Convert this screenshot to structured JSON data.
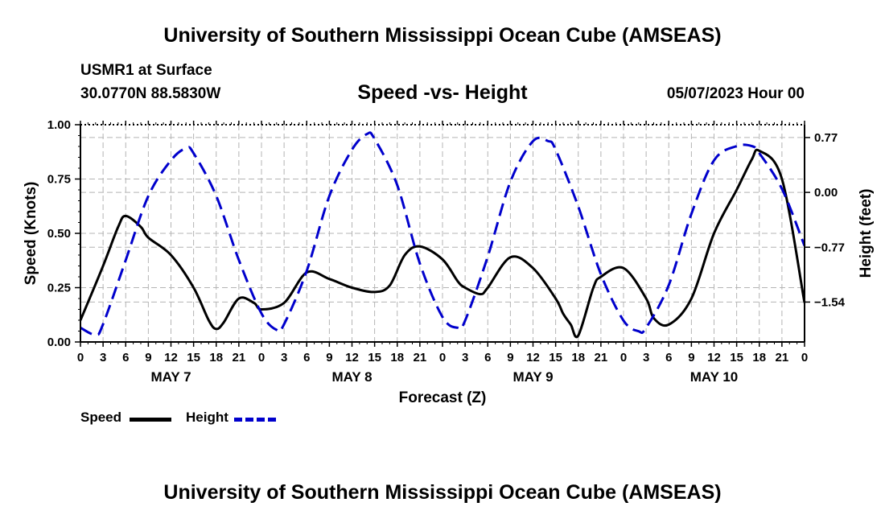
{
  "header": {
    "title": "University of Southern Mississippi Ocean Cube (AMSEAS)",
    "station": "USMR1 at Surface",
    "coords": "30.0770N  88.5830W",
    "chart_title": "Speed -vs- Height",
    "datetime": "05/07/2023 Hour 00"
  },
  "footer": {
    "title": "University of Southern Mississippi Ocean Cube (AMSEAS)"
  },
  "legend": {
    "speed_label": "Speed",
    "height_label": "Height"
  },
  "colors": {
    "speed": "#000000",
    "height": "#0000cc",
    "grid": "#b4b4b4"
  },
  "chart_data": {
    "type": "line",
    "title": "Speed -vs- Height",
    "xlabel": "Forecast (Z)",
    "ylabel": "Speed (Knots)",
    "y2label": "Height (feet)",
    "x_unit": "hours from 05/07/2023 00Z",
    "xlim": [
      0,
      96
    ],
    "ylim": [
      0,
      1
    ],
    "y2lim": [
      -2.1,
      0.95
    ],
    "grid": true,
    "x_ticks": [
      0,
      3,
      6,
      9,
      12,
      15,
      18,
      21,
      24,
      27,
      30,
      33,
      36,
      39,
      42,
      45,
      48,
      51,
      54,
      57,
      60,
      63,
      66,
      69,
      72,
      75,
      78,
      81,
      84,
      87,
      90,
      93,
      96
    ],
    "x_tick_labels": [
      "0",
      "3",
      "6",
      "9",
      "12",
      "15",
      "18",
      "21",
      "0",
      "3",
      "6",
      "9",
      "12",
      "15",
      "18",
      "21",
      "0",
      "3",
      "6",
      "9",
      "12",
      "15",
      "18",
      "21",
      "0",
      "3",
      "6",
      "9",
      "12",
      "15",
      "18",
      "21",
      "0"
    ],
    "day_labels": [
      {
        "hour": 12,
        "label": "MAY 7"
      },
      {
        "hour": 36,
        "label": "MAY 8"
      },
      {
        "hour": 60,
        "label": "MAY 9"
      },
      {
        "hour": 84,
        "label": "MAY 10"
      }
    ],
    "y_ticks": [
      0,
      0.25,
      0.5,
      0.75,
      1.0
    ],
    "y_tick_labels": [
      "0.00",
      "0.25",
      "0.50",
      "0.75",
      "1.00"
    ],
    "y2_ticks": [
      0.77,
      0,
      -0.77,
      -1.54
    ],
    "y2_tick_labels": [
      "0.77",
      "0.00",
      "−0.77",
      "−1.54"
    ],
    "series": [
      {
        "name": "Speed",
        "axis": "left",
        "x": [
          0,
          3,
          5,
          6,
          8,
          9,
          12,
          15,
          17,
          18,
          19,
          21,
          23,
          24,
          27,
          30,
          33,
          36,
          39,
          41,
          43,
          45,
          48,
          50,
          51,
          53,
          54,
          57,
          60,
          63,
          64,
          65,
          66,
          68,
          69,
          72,
          75,
          76,
          78,
          81,
          84,
          87,
          89,
          90,
          93,
          96
        ],
        "y": [
          0.1,
          0.35,
          0.53,
          0.58,
          0.53,
          0.48,
          0.4,
          0.25,
          0.1,
          0.06,
          0.09,
          0.2,
          0.18,
          0.15,
          0.18,
          0.32,
          0.29,
          0.25,
          0.23,
          0.26,
          0.4,
          0.44,
          0.38,
          0.28,
          0.25,
          0.22,
          0.25,
          0.39,
          0.34,
          0.2,
          0.13,
          0.08,
          0.03,
          0.25,
          0.3,
          0.34,
          0.2,
          0.11,
          0.08,
          0.2,
          0.5,
          0.7,
          0.84,
          0.88,
          0.75,
          0.18
        ]
      },
      {
        "name": "Height",
        "axis": "right",
        "x": [
          0,
          2,
          3,
          6,
          9,
          12,
          14,
          15,
          18,
          21,
          24,
          26,
          27,
          30,
          33,
          36,
          38,
          39,
          42,
          45,
          48,
          50,
          51,
          54,
          57,
          60,
          62,
          63,
          66,
          69,
          72,
          74,
          75,
          78,
          81,
          84,
          87,
          89,
          90,
          93,
          96
        ],
        "y": [
          -1.9,
          -2.0,
          -1.85,
          -0.95,
          -0.05,
          0.45,
          0.62,
          0.55,
          -0.05,
          -0.95,
          -1.7,
          -1.93,
          -1.85,
          -1.1,
          -0.05,
          0.6,
          0.82,
          0.75,
          0.1,
          -1.0,
          -1.75,
          -1.9,
          -1.8,
          -0.9,
          0.15,
          0.72,
          0.72,
          0.6,
          -0.2,
          -1.15,
          -1.8,
          -1.95,
          -1.9,
          -1.3,
          -0.3,
          0.45,
          0.65,
          0.65,
          0.55,
          0.05,
          -0.75
        ]
      }
    ]
  }
}
